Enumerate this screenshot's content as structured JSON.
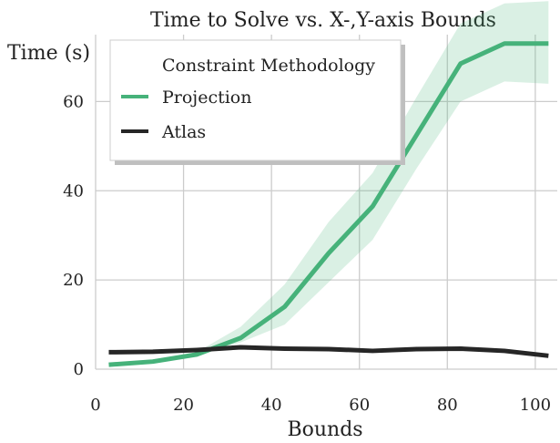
{
  "chart_data": {
    "type": "line",
    "title": "Time to Solve vs. X-,Y-axis Bounds",
    "xlabel": "Bounds",
    "ylabel": "Time (s)",
    "xlim": [
      0,
      105
    ],
    "ylim": [
      0,
      75
    ],
    "xticks": [
      0,
      20,
      40,
      60,
      80,
      100
    ],
    "yticks": [
      0,
      20,
      40,
      60
    ],
    "grid": true,
    "legend": {
      "title": "Constraint Methodology",
      "placement": "top-left"
    },
    "series": [
      {
        "name": "Projection",
        "color": "#46b27a",
        "x": [
          3,
          13,
          23,
          33,
          43,
          53,
          63,
          73,
          83,
          93,
          103
        ],
        "y": [
          1.0,
          1.7,
          3.3,
          7.0,
          14.0,
          26.0,
          36.5,
          52.5,
          68.5,
          73.0,
          73.0
        ],
        "lower": [
          0.9,
          1.5,
          3.0,
          6.0,
          10.0,
          19.5,
          29.0,
          45.0,
          60.0,
          64.5,
          64.0
        ],
        "upper": [
          1.1,
          2.0,
          3.8,
          9.5,
          19.0,
          33.0,
          44.0,
          61.0,
          77.5,
          82.0,
          82.5
        ]
      },
      {
        "name": "Atlas",
        "color": "#262626",
        "x": [
          3,
          13,
          23,
          33,
          43,
          53,
          63,
          73,
          83,
          93,
          103
        ],
        "y": [
          3.8,
          3.9,
          4.3,
          4.9,
          4.6,
          4.5,
          4.1,
          4.5,
          4.6,
          4.1,
          3.0
        ]
      }
    ]
  }
}
